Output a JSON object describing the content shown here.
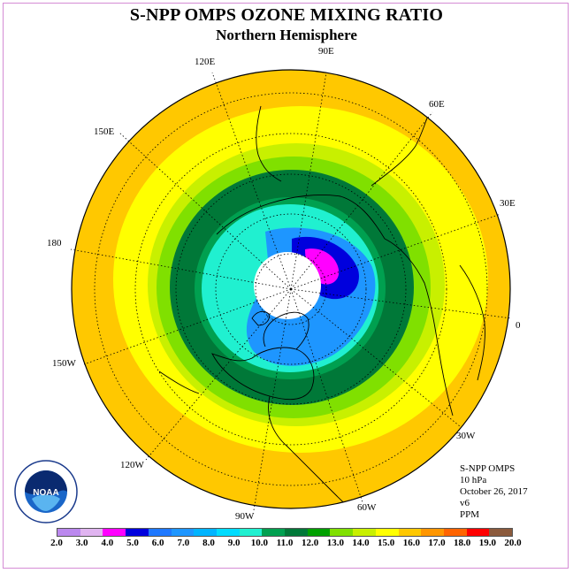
{
  "title": "S-NPP OMPS OZONE MIXING RATIO",
  "subtitle": "Northern Hemisphere",
  "longitude_labels": [
    "90E",
    "60E",
    "30E",
    "0",
    "30W",
    "60W",
    "90W",
    "120W",
    "150W",
    "180",
    "150E",
    "120E"
  ],
  "info": {
    "instrument": "S-NPP OMPS",
    "level": "10 hPa",
    "date": "October 26, 2017",
    "version": "v6",
    "units": "PPM"
  },
  "logo_text": "NOAA",
  "colorbar": {
    "ticks": [
      "2.0",
      "3.0",
      "4.0",
      "5.0",
      "6.0",
      "7.0",
      "8.0",
      "9.0",
      "10.0",
      "11.0",
      "12.0",
      "13.0",
      "14.0",
      "15.0",
      "16.0",
      "17.0",
      "18.0",
      "19.0",
      "20.0"
    ],
    "colors": [
      "#bb88ee",
      "#e0b4f0",
      "#ff00ff",
      "#0000dd",
      "#1e78ff",
      "#1e96ff",
      "#00b4ff",
      "#00dcff",
      "#20f0d0",
      "#00a050",
      "#007838",
      "#00a000",
      "#80e000",
      "#c8f000",
      "#ffff00",
      "#ffc800",
      "#ff9600",
      "#ff6400",
      "#ff0000",
      "#8b5a3c"
    ]
  },
  "map_colors": {
    "outer": "#ffc800",
    "band_yellow": "#ffff00",
    "band_lightgreen": "#c8f000",
    "band_green": "#80e000",
    "band_darkgreen": "#007838",
    "band_medgreen": "#00a050",
    "inner_cyan": "#20f0d0",
    "blue": "#1e96ff",
    "deepblue": "#0000dd",
    "magenta": "#ff00ff",
    "pole_cap": "#ffffff"
  }
}
